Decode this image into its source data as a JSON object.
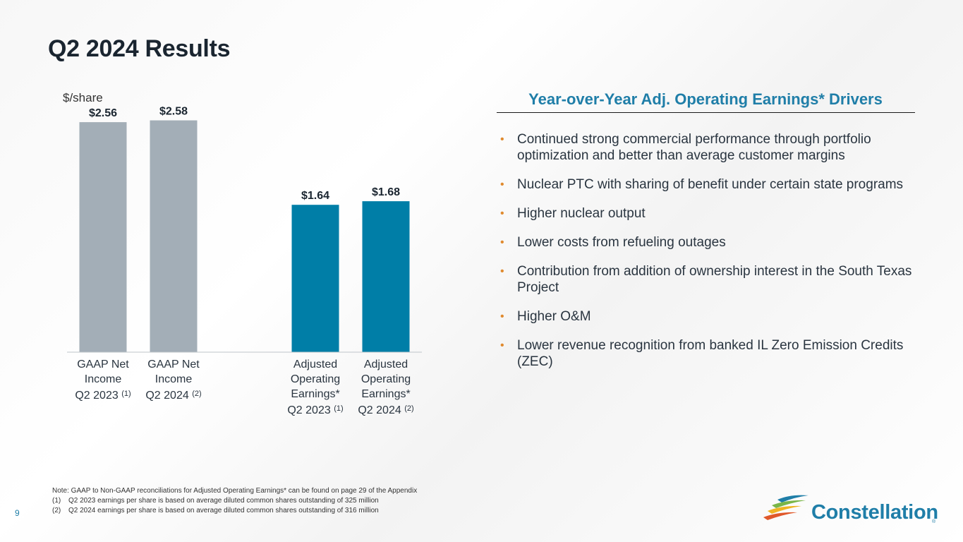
{
  "title": "Q2 2024 Results",
  "page_number": "9",
  "chart_data": {
    "type": "bar",
    "unit_label": "$/share",
    "categories": [
      {
        "line1": "GAAP Net",
        "line2": "Income",
        "line3": "",
        "period": "Q2 2023",
        "footnote": "(1)"
      },
      {
        "line1": "GAAP Net",
        "line2": "Income",
        "line3": "",
        "period": "Q2 2024",
        "footnote": "(2)"
      },
      {
        "line1": "Adjusted",
        "line2": "Operating",
        "line3": "Earnings*",
        "period": "Q2 2023",
        "footnote": "(1)"
      },
      {
        "line1": "Adjusted",
        "line2": "Operating",
        "line3": "Earnings*",
        "period": "Q2 2024",
        "footnote": "(2)"
      }
    ],
    "values": [
      2.56,
      2.58,
      1.64,
      1.68
    ],
    "value_labels": [
      "$2.56",
      "$2.58",
      "$1.64",
      "$1.68"
    ],
    "bar_colors": [
      "#a3aeb7",
      "#a3aeb7",
      "#007ea7",
      "#007ea7"
    ],
    "ylim": [
      0,
      2.6
    ]
  },
  "drivers": {
    "heading": "Year-over-Year Adj. Operating Earnings* Drivers",
    "bullet_color": "#e08a2e",
    "items": [
      "Continued strong commercial performance through portfolio optimization and better than average customer margins",
      "Nuclear PTC with sharing of benefit under certain state programs",
      "Higher nuclear output",
      "Lower costs from refueling outages",
      "Contribution from addition of ownership interest in the South Texas Project",
      "Higher O&M",
      "Lower revenue recognition from banked IL Zero Emission Credits (ZEC)"
    ]
  },
  "notes": {
    "main": "Note: GAAP to Non-GAAP reconciliations for Adjusted Operating Earnings* can be found on page 29 of the Appendix",
    "footnotes": [
      {
        "num": "(1)",
        "text": "Q2 2023 earnings per share is based on average diluted common shares outstanding of 325 million"
      },
      {
        "num": "(2)",
        "text": "Q2 2024 earnings per share is based on average diluted common shares outstanding of 316 million"
      }
    ]
  },
  "logo": {
    "name": "Constellation",
    "mark": "®"
  },
  "colors": {
    "accent": "#1f7ea8",
    "gaap_bar": "#a3aeb7",
    "adjusted_bar": "#007ea7",
    "bullet": "#e08a2e"
  }
}
